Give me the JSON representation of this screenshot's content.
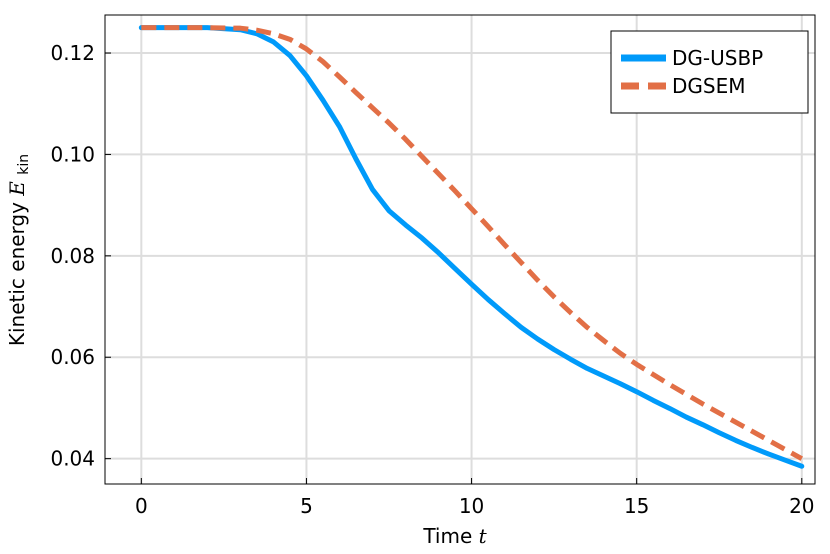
{
  "chart_data": {
    "type": "line",
    "title": "",
    "xlabel": "Time",
    "xlabel_symbol": "t",
    "ylabel": "Kinetic energy",
    "ylabel_symbol": "E",
    "ylabel_subscript": "kin",
    "xlim": [
      -1.1,
      20.4
    ],
    "ylim": [
      0.035,
      0.1275
    ],
    "xticks": [
      0,
      5,
      10,
      15,
      20
    ],
    "xtick_labels": [
      "0",
      "5",
      "10",
      "15",
      "20"
    ],
    "yticks": [
      0.04,
      0.06,
      0.08,
      0.1,
      0.12
    ],
    "ytick_labels": [
      "0.04",
      "0.06",
      "0.08",
      "0.10",
      "0.12"
    ],
    "grid": true,
    "legend_position": "top-right",
    "series": [
      {
        "name": "DG-USBP",
        "color": "#009AFA",
        "style": "solid",
        "x": [
          0,
          1,
          2,
          3,
          3.5,
          4,
          4.5,
          5,
          5.5,
          6,
          6.5,
          7,
          7.5,
          8,
          8.5,
          9,
          9.5,
          10,
          10.5,
          11,
          11.5,
          12,
          12.5,
          13,
          13.5,
          14,
          14.5,
          15,
          15.5,
          16,
          16.5,
          17,
          17.5,
          18,
          18.5,
          19,
          19.5,
          20
        ],
        "y": [
          0.125,
          0.125,
          0.125,
          0.1246,
          0.1238,
          0.1222,
          0.1195,
          0.1155,
          0.1107,
          0.1055,
          0.0991,
          0.0931,
          0.0889,
          0.0861,
          0.0835,
          0.0806,
          0.0775,
          0.0744,
          0.0714,
          0.0686,
          0.0659,
          0.0636,
          0.0615,
          0.0596,
          0.0578,
          0.0563,
          0.0548,
          0.0532,
          0.0515,
          0.0499,
          0.0482,
          0.0467,
          0.0451,
          0.0436,
          0.0422,
          0.0409,
          0.0397,
          0.0385
        ]
      },
      {
        "name": "DGSEM",
        "color": "#E26F46",
        "style": "dashed",
        "x": [
          0,
          1,
          2,
          3,
          3.5,
          4,
          4.5,
          5,
          5.5,
          6,
          6.5,
          7,
          7.5,
          8,
          8.5,
          9,
          9.5,
          10,
          10.5,
          11,
          11.5,
          12,
          12.5,
          13,
          13.5,
          14,
          14.5,
          15,
          15.5,
          16,
          16.5,
          17,
          17.5,
          18,
          18.5,
          19,
          19.5,
          20
        ],
        "y": [
          0.125,
          0.125,
          0.125,
          0.1249,
          0.1245,
          0.1238,
          0.1227,
          0.1208,
          0.1183,
          0.1153,
          0.1122,
          0.1092,
          0.1062,
          0.103,
          0.0996,
          0.0962,
          0.0928,
          0.0893,
          0.0858,
          0.0822,
          0.0787,
          0.0752,
          0.0719,
          0.0688,
          0.0659,
          0.0633,
          0.0608,
          0.0586,
          0.0566,
          0.0546,
          0.0527,
          0.0508,
          0.049,
          0.0472,
          0.0454,
          0.0436,
          0.0418,
          0.04
        ]
      }
    ]
  }
}
